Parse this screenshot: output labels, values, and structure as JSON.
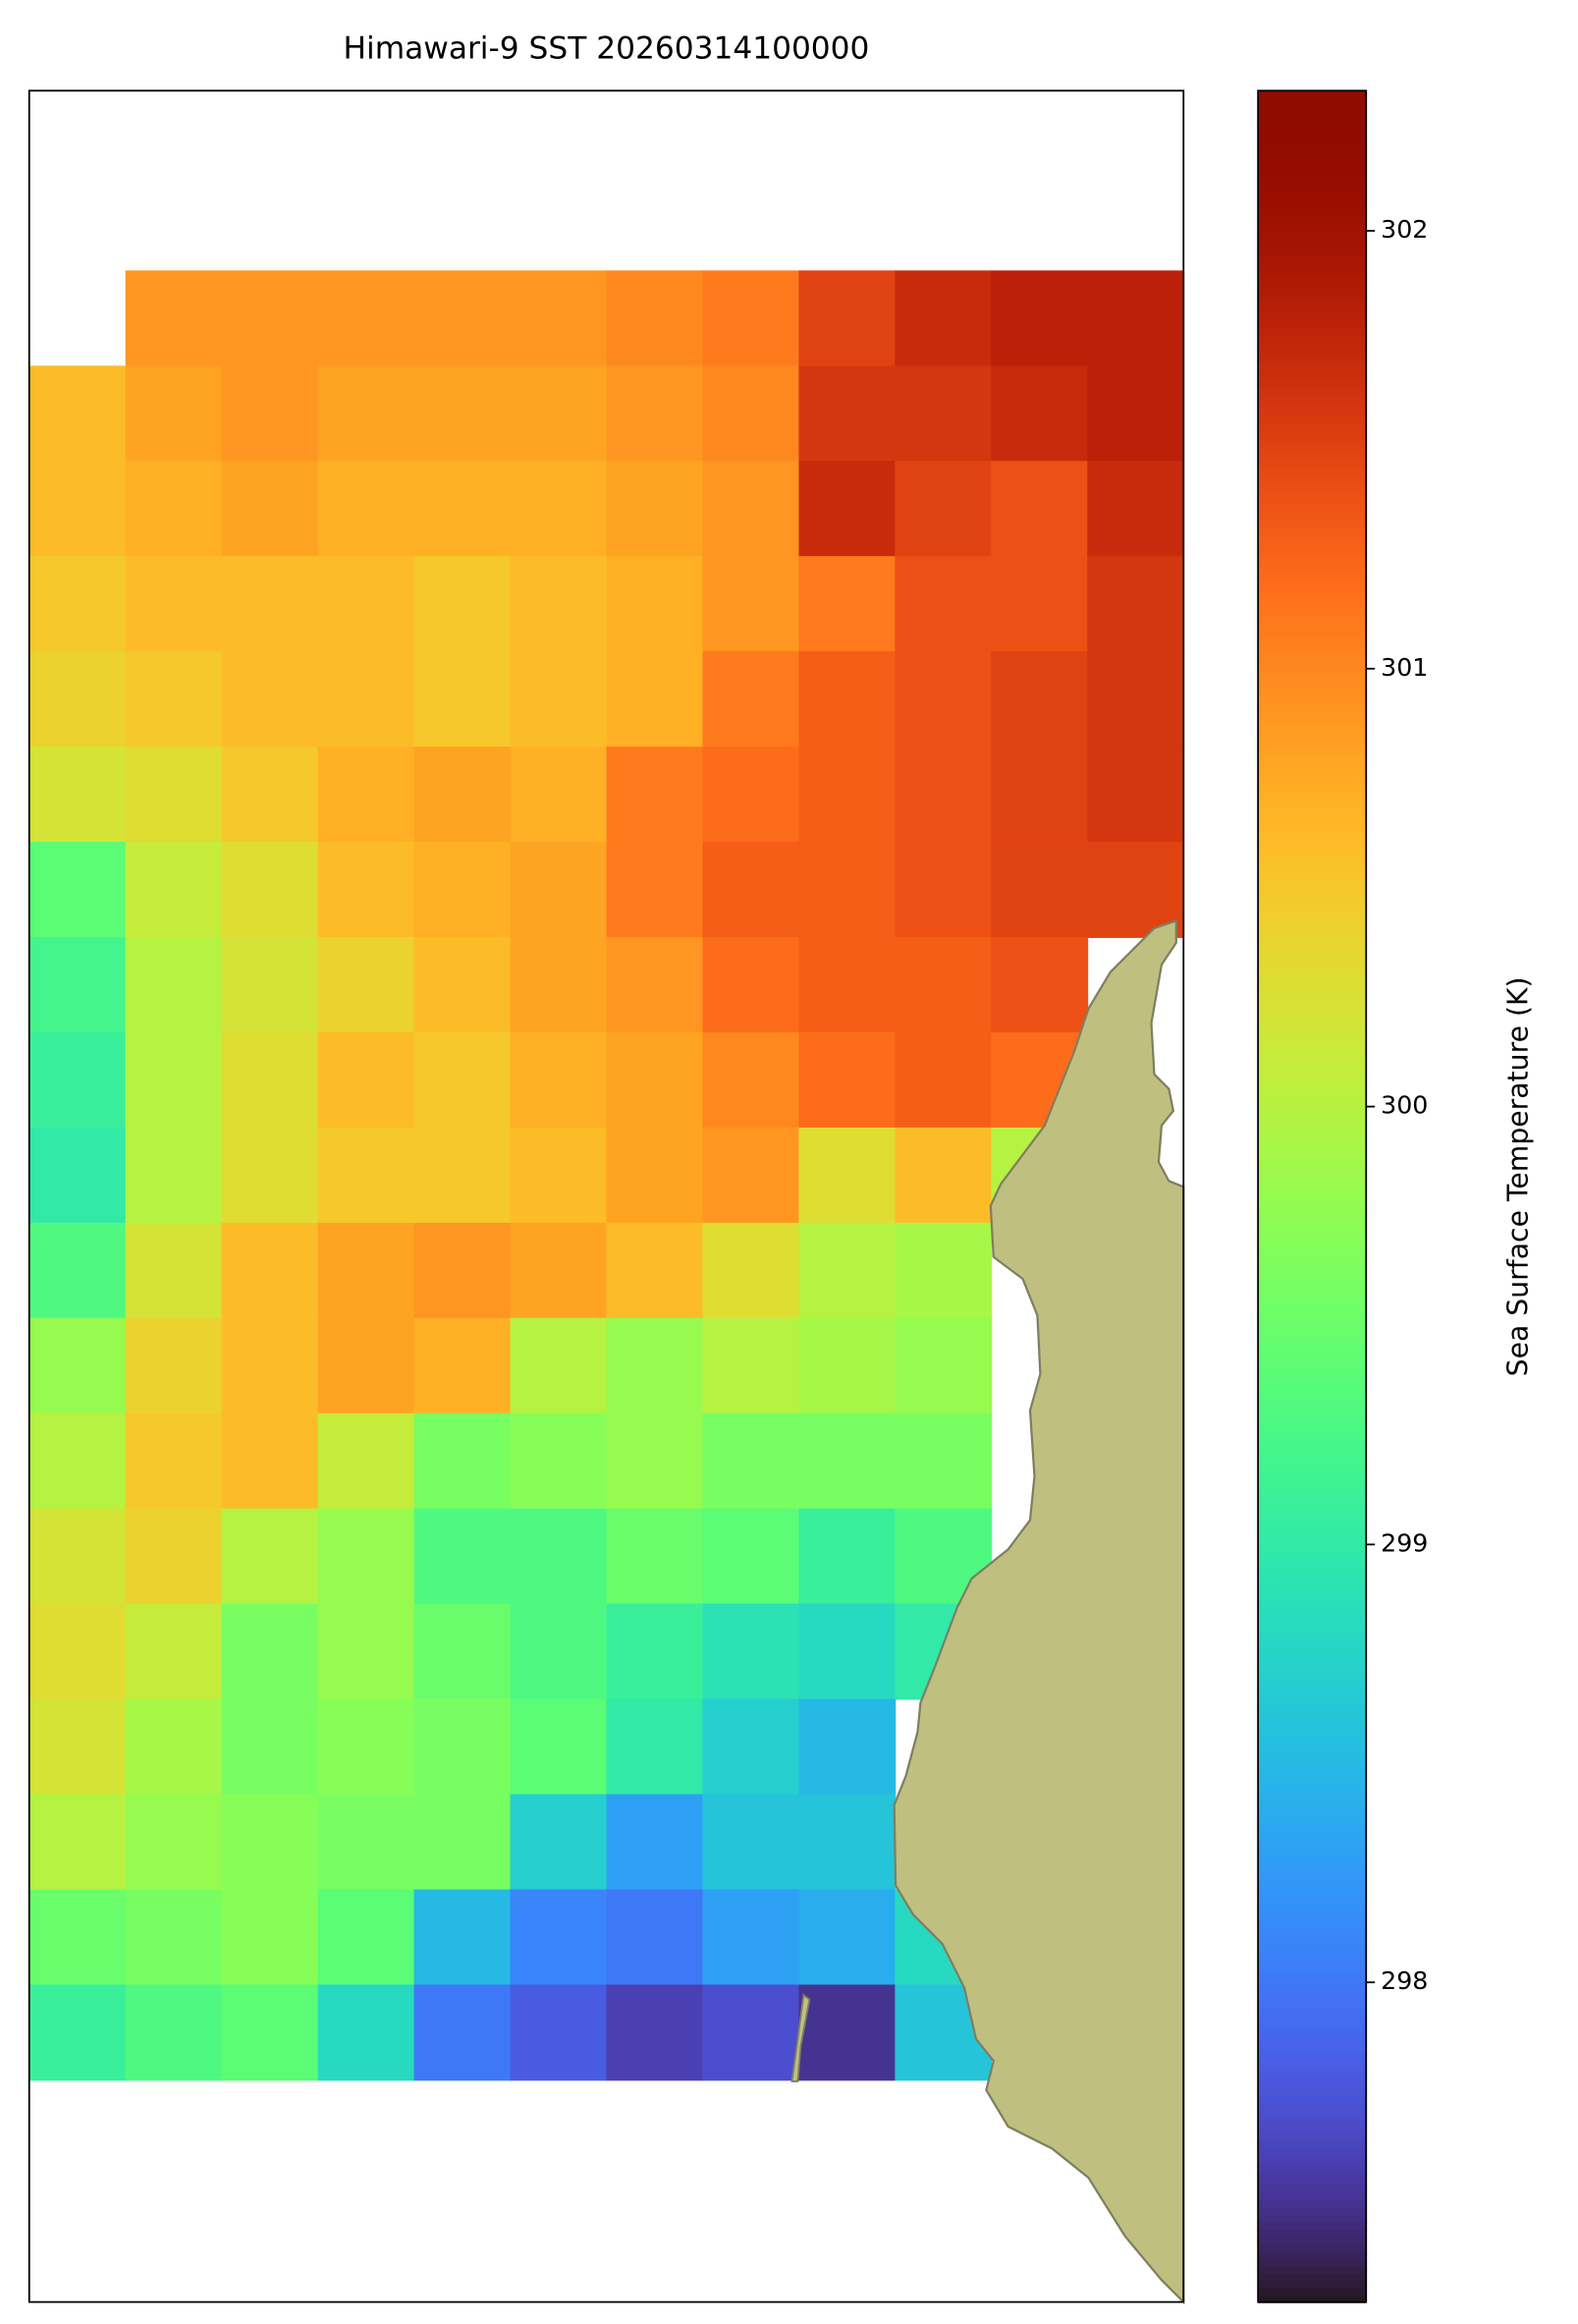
{
  "chart_data": {
    "type": "heatmap",
    "title": "Himawari-9 SST 20260314100000",
    "colorbar_label": "Sea Surface Temperature (K)",
    "colormap": "turbo",
    "clim": [
      297.27,
      302.32
    ],
    "cticks": [
      298,
      299,
      300,
      301,
      302
    ],
    "land_color": "#bfbf80",
    "z": [
      [
        null,
        300.9,
        300.9,
        300.9,
        300.9,
        300.9,
        301.0,
        301.1,
        301.5,
        301.7,
        301.8,
        301.8
      ],
      [
        300.6,
        300.8,
        300.9,
        300.8,
        300.8,
        300.8,
        300.9,
        301.0,
        301.6,
        301.6,
        301.7,
        301.8
      ],
      [
        300.6,
        300.7,
        300.8,
        300.7,
        300.7,
        300.7,
        300.8,
        300.9,
        301.7,
        301.5,
        301.4,
        301.7
      ],
      [
        300.5,
        300.6,
        300.6,
        300.6,
        300.5,
        300.6,
        300.7,
        300.9,
        301.1,
        301.4,
        301.4,
        301.6
      ],
      [
        300.4,
        300.5,
        300.6,
        300.6,
        300.5,
        300.6,
        300.7,
        301.1,
        301.3,
        301.4,
        301.5,
        301.6
      ],
      [
        300.2,
        300.3,
        300.5,
        300.7,
        300.8,
        300.7,
        301.1,
        301.2,
        301.3,
        301.4,
        301.5,
        301.6
      ],
      [
        299.4,
        300.1,
        300.3,
        300.6,
        300.7,
        300.8,
        301.1,
        301.3,
        301.3,
        301.4,
        301.5,
        301.5
      ],
      [
        299.2,
        300.0,
        300.2,
        300.4,
        300.6,
        300.8,
        300.9,
        301.2,
        301.3,
        301.3,
        301.4,
        null
      ],
      [
        299.1,
        300.0,
        300.3,
        300.6,
        300.5,
        300.7,
        300.8,
        301.0,
        301.2,
        301.3,
        301.2,
        null
      ],
      [
        299.0,
        300.0,
        300.3,
        300.5,
        300.5,
        300.6,
        300.8,
        300.9,
        300.3,
        300.6,
        300.0,
        null
      ],
      [
        299.3,
        300.2,
        300.6,
        300.8,
        300.9,
        300.8,
        300.6,
        300.3,
        300.0,
        299.9,
        null,
        null
      ],
      [
        299.8,
        300.4,
        300.6,
        300.8,
        300.7,
        300.0,
        299.8,
        300.0,
        299.9,
        299.8,
        null,
        null
      ],
      [
        300.0,
        300.5,
        300.6,
        300.1,
        299.6,
        299.7,
        299.8,
        299.6,
        299.6,
        299.6,
        null,
        null
      ],
      [
        300.2,
        300.4,
        300.0,
        299.8,
        299.3,
        299.3,
        299.5,
        299.4,
        299.1,
        299.3,
        null,
        null
      ],
      [
        300.3,
        300.1,
        299.6,
        299.8,
        299.5,
        299.3,
        299.1,
        298.9,
        298.8,
        299.0,
        null,
        null
      ],
      [
        300.2,
        299.9,
        299.6,
        299.7,
        299.6,
        299.4,
        299.0,
        298.7,
        298.5,
        null,
        null,
        null
      ],
      [
        300.0,
        299.8,
        299.7,
        299.6,
        299.6,
        298.7,
        298.3,
        298.6,
        298.6,
        null,
        null,
        null
      ],
      [
        299.5,
        299.6,
        299.7,
        299.4,
        298.5,
        298.1,
        298.0,
        298.3,
        298.4,
        298.8,
        null,
        null
      ],
      [
        299.1,
        299.3,
        299.4,
        298.8,
        298.0,
        297.8,
        297.6,
        297.7,
        297.5,
        298.6,
        null,
        null
      ]
    ]
  }
}
